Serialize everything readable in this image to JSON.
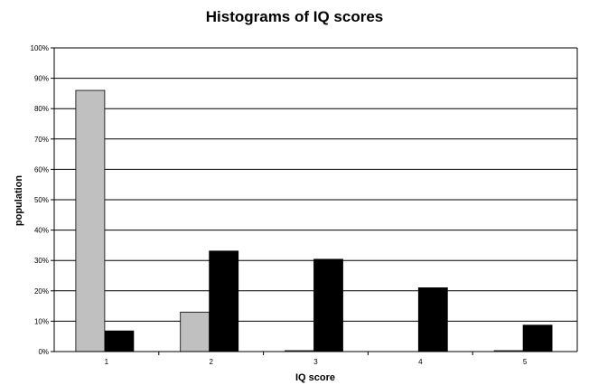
{
  "chart_data": {
    "type": "bar",
    "title": "Histograms of IQ scores",
    "xlabel": "IQ score",
    "ylabel": "population",
    "categories": [
      "1",
      "2",
      "3",
      "4",
      "5"
    ],
    "series": [
      {
        "values": [
          86,
          13,
          0.3,
          0,
          0.3
        ],
        "color": "#c0c0c0"
      },
      {
        "values": [
          6.8,
          33.1,
          30.4,
          21,
          8.7
        ],
        "color": "#000000"
      }
    ],
    "ylim": [
      0,
      100
    ],
    "yticks": [
      0,
      10,
      20,
      30,
      40,
      50,
      60,
      70,
      80,
      90,
      100
    ],
    "ytick_labels": [
      "0%",
      "10%",
      "20%",
      "30%",
      "40%",
      "50%",
      "60%",
      "70%",
      "80%",
      "90%",
      "100%"
    ],
    "grid": true,
    "legend": "none"
  }
}
